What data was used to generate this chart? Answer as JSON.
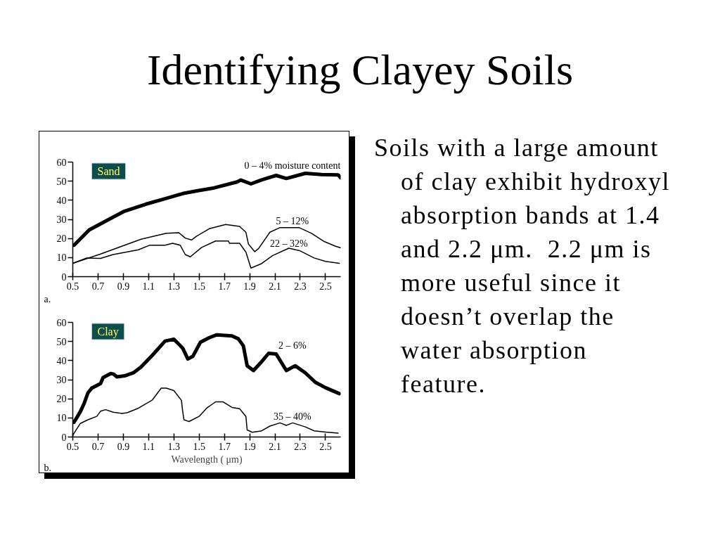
{
  "chart_data": [
    {
      "type": "other",
      "title": "Identifying Clayey Soils",
      "annotations": [
        "Soils with a large amount of clay exhibit hydroxyl absorption bands at 1.4 and 2.2 μm.  2.2 μm is more useful since it doesn’t overlap the water absorption feature."
      ]
    },
    {
      "type": "line",
      "title": "Sand",
      "annotations": [
        "a."
      ],
      "xlim": [
        0.5,
        2.62
      ],
      "ylim": [
        0,
        60
      ],
      "xticks": [
        0.5,
        0.7,
        0.9,
        1.1,
        1.3,
        1.5,
        1.7,
        1.9,
        2.1,
        2.3,
        2.5
      ],
      "yticks": [
        0,
        10,
        20,
        30,
        40,
        50,
        60
      ],
      "grid": false,
      "series": [
        {
          "name": "0 – 4% moisture content",
          "color": "#000000",
          "x": [
            0.51,
            0.63,
            0.82,
            0.91,
            1.08,
            1.24,
            1.37,
            1.48,
            1.62,
            1.8,
            1.83,
            1.91,
            1.99,
            2.11,
            2.19,
            2.34,
            2.47,
            2.6,
            2.62
          ],
          "values": [
            16.5,
            24.5,
            31.2,
            34.3,
            38,
            41,
            43.5,
            44.9,
            46.5,
            49.6,
            50.6,
            48.6,
            50.6,
            53,
            51.4,
            54.1,
            53.5,
            53.3,
            51.8
          ]
        },
        {
          "name": "5 – 12%",
          "color": "#000000",
          "x": [
            0.5,
            0.72,
            1.04,
            1.24,
            1.34,
            1.39,
            1.44,
            1.48,
            1.58,
            1.71,
            1.82,
            1.87,
            1.89,
            1.94,
            1.97,
            2.06,
            2.14,
            2.29,
            2.39,
            2.49,
            2.58,
            2.62
          ],
          "values": [
            7.0,
            11.9,
            19.6,
            22.7,
            23.0,
            20.2,
            19.2,
            21.2,
            25.1,
            27.3,
            26.3,
            23.3,
            17.1,
            13.1,
            14.7,
            23.3,
            25.7,
            25.7,
            22.7,
            18.4,
            15.9,
            15.1
          ]
        },
        {
          "name": "22 – 32%",
          "color": "#000000",
          "x": [
            0.5,
            0.61,
            0.72,
            0.82,
            1.02,
            1.11,
            1.23,
            1.29,
            1.35,
            1.39,
            1.43,
            1.52,
            1.63,
            1.73,
            1.74,
            1.82,
            1.87,
            1.91,
            1.99,
            2.08,
            2.21,
            2.3,
            2.41,
            2.5,
            2.61
          ],
          "values": [
            7.0,
            9.8,
            9.6,
            11.6,
            14.1,
            16.5,
            16.5,
            17.5,
            16.5,
            11.6,
            10.4,
            15.3,
            18.7,
            18.7,
            17.5,
            17.5,
            12.9,
            4.5,
            6.7,
            11.0,
            14.9,
            13.5,
            9.8,
            8.0,
            7.0
          ]
        }
      ]
    },
    {
      "type": "line",
      "title": "Clay",
      "annotations": [
        "b."
      ],
      "xlabel": "Wavelength ( μm)",
      "xlim": [
        0.5,
        2.62
      ],
      "ylim": [
        0,
        60
      ],
      "xticks": [
        0.5,
        0.7,
        0.9,
        1.1,
        1.3,
        1.5,
        1.7,
        1.9,
        2.1,
        2.3,
        2.5
      ],
      "yticks": [
        0,
        10,
        20,
        30,
        40,
        50,
        60
      ],
      "grid": false,
      "series": [
        {
          "name": "2 – 6%",
          "color": "#000000",
          "x": [
            0.51,
            0.56,
            0.59,
            0.62,
            0.65,
            0.72,
            0.74,
            0.8,
            0.82,
            0.85,
            0.91,
            0.98,
            1.04,
            1.13,
            1.23,
            1.3,
            1.37,
            1.41,
            1.45,
            1.51,
            1.58,
            1.64,
            1.76,
            1.81,
            1.85,
            1.88,
            1.93,
            1.99,
            2.05,
            2.11,
            2.19,
            2.26,
            2.34,
            2.42,
            2.5,
            2.61
          ],
          "values": [
            7.7,
            13.3,
            17.6,
            23.1,
            25.6,
            28.0,
            31.1,
            33.2,
            33.0,
            31.5,
            32.0,
            33.6,
            36.6,
            42.8,
            50.2,
            51.2,
            46.5,
            40.9,
            42.2,
            49.6,
            52.0,
            53.5,
            52.9,
            51.4,
            47.7,
            37.3,
            34.8,
            39.1,
            43.8,
            43.4,
            34.8,
            37.3,
            33.6,
            28.6,
            25.8,
            22.7
          ]
        },
        {
          "name": "35 – 40%",
          "color": "#000000",
          "x": [
            0.5,
            0.56,
            0.62,
            0.69,
            0.72,
            0.76,
            0.82,
            0.89,
            0.93,
            1.02,
            1.13,
            1.2,
            1.24,
            1.3,
            1.36,
            1.37,
            1.38,
            1.42,
            1.5,
            1.56,
            1.63,
            1.69,
            1.76,
            1.82,
            1.87,
            1.88,
            1.92,
            1.99,
            2.06,
            2.14,
            2.19,
            2.24,
            2.34,
            2.41,
            2.5,
            2.6
          ],
          "values": [
            1.0,
            7.1,
            9.0,
            10.8,
            13.5,
            14.3,
            13.0,
            12.3,
            12.7,
            15.1,
            19.4,
            25.6,
            25.6,
            24.3,
            19.2,
            13.3,
            9.0,
            8.1,
            10.8,
            15.1,
            18.4,
            18.4,
            15.5,
            14.8,
            10.8,
            3.7,
            2.5,
            3.1,
            5.7,
            7.4,
            6.1,
            7.4,
            5.3,
            3.2,
            2.6,
            2.0
          ]
        }
      ]
    }
  ]
}
